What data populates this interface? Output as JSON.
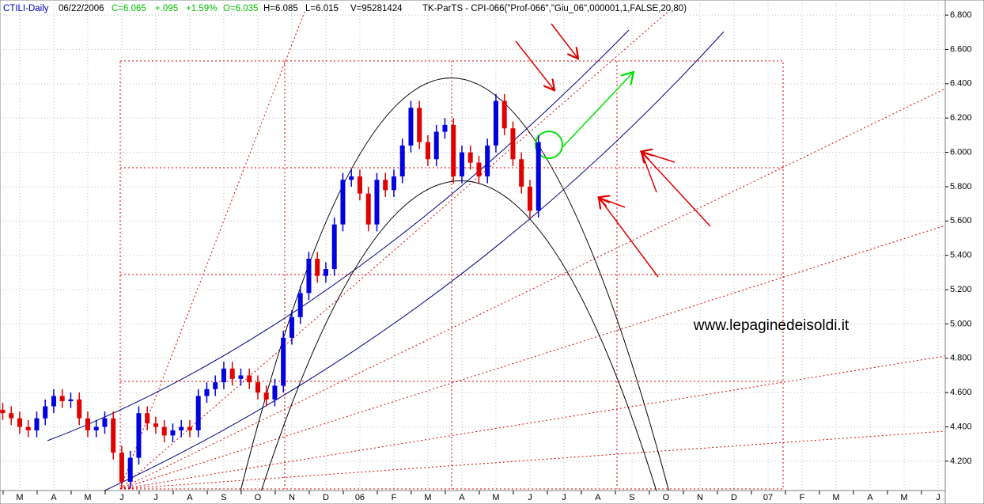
{
  "chart_data": {
    "type": "candlestick",
    "header": [
      {
        "text": "CTILI-Daily",
        "color": "#0000c0"
      },
      {
        "text": "06/22/2006",
        "color": "#000000"
      },
      {
        "text": "C=6.065",
        "color": "#00c000"
      },
      {
        "text": "+.095",
        "color": "#00c000"
      },
      {
        "text": "+1.59%",
        "color": "#00c000"
      },
      {
        "text": "O=6.035",
        "color": "#00c000"
      },
      {
        "text": "H=6.085",
        "color": "#000000"
      },
      {
        "text": "L=6.015",
        "color": "#000000"
      },
      {
        "text": "V=95281424",
        "color": "#000000"
      },
      {
        "text": "TK-ParTS - CPI-066(\"Prof-066\",\"Giu_06\",000001,1,FALSE,20,80)",
        "color": "#000000"
      }
    ],
    "annotation": "www.lepaginedeisoldi.it",
    "up_color": "#0000e0",
    "down_color": "#e00000",
    "grid": true,
    "xlim": [
      -0.58,
      27.21
    ],
    "ylim": [
      4.029,
      6.888
    ],
    "xticks": [
      {
        "value": 0,
        "label": "M"
      },
      {
        "value": 1,
        "label": "A"
      },
      {
        "value": 2,
        "label": "M"
      },
      {
        "value": 3,
        "label": "J"
      },
      {
        "value": 4,
        "label": "J"
      },
      {
        "value": 5,
        "label": "A"
      },
      {
        "value": 6,
        "label": "S"
      },
      {
        "value": 7,
        "label": "O"
      },
      {
        "value": 8,
        "label": "N"
      },
      {
        "value": 9,
        "label": "D"
      },
      {
        "value": 10,
        "label": "06"
      },
      {
        "value": 11,
        "label": "F"
      },
      {
        "value": 12,
        "label": "M"
      },
      {
        "value": 13,
        "label": "A"
      },
      {
        "value": 14,
        "label": "M"
      },
      {
        "value": 15,
        "label": "J"
      },
      {
        "value": 16,
        "label": "J"
      },
      {
        "value": 17,
        "label": "A"
      },
      {
        "value": 18,
        "label": "S"
      },
      {
        "value": 19,
        "label": "O"
      },
      {
        "value": 20,
        "label": "N"
      },
      {
        "value": 21,
        "label": "D"
      },
      {
        "value": 22,
        "label": "07"
      },
      {
        "value": 23,
        "label": "F"
      },
      {
        "value": 24,
        "label": "M"
      },
      {
        "value": 25,
        "label": "A"
      },
      {
        "value": 26,
        "label": "M"
      },
      {
        "value": 27,
        "label": "J"
      }
    ],
    "yticks": [
      {
        "value": 4.2,
        "label": "4.200"
      },
      {
        "value": 4.4,
        "label": "4.400"
      },
      {
        "value": 4.6,
        "label": "4.600"
      },
      {
        "value": 4.8,
        "label": "4.800"
      },
      {
        "value": 5.0,
        "label": "5.000"
      },
      {
        "value": 5.2,
        "label": "5.200"
      },
      {
        "value": 5.4,
        "label": "5.400"
      },
      {
        "value": 5.6,
        "label": "5.600"
      },
      {
        "value": 5.8,
        "label": "5.800"
      },
      {
        "value": 6.0,
        "label": "6.000"
      },
      {
        "value": 6.2,
        "label": "6.200"
      },
      {
        "value": 6.4,
        "label": "6.400"
      },
      {
        "value": 6.6,
        "label": "6.600"
      },
      {
        "value": 6.8,
        "label": "6.800"
      }
    ],
    "x": [
      -0.5,
      -0.25,
      0,
      0.25,
      0.5,
      0.75,
      1,
      1.25,
      1.5,
      1.75,
      2,
      2.25,
      2.5,
      2.75,
      3,
      3.25,
      3.5,
      3.75,
      4,
      4.25,
      4.5,
      4.75,
      5,
      5.25,
      5.5,
      5.75,
      6,
      6.25,
      6.5,
      6.75,
      7,
      7.25,
      7.5,
      7.75,
      8,
      8.25,
      8.5,
      8.75,
      9,
      9.25,
      9.5,
      9.75,
      10,
      10.25,
      10.5,
      10.75,
      11,
      11.25,
      11.5,
      11.75,
      12,
      12.25,
      12.5,
      12.75,
      13,
      13.25,
      13.5,
      13.75,
      14,
      14.25,
      14.5,
      14.75,
      15,
      15.25
    ],
    "open": [
      4.5,
      4.48,
      4.45,
      4.4,
      4.38,
      4.45,
      4.52,
      4.58,
      4.55,
      4.56,
      4.45,
      4.38,
      4.4,
      4.45,
      4.25,
      4.08,
      4.22,
      4.48,
      4.42,
      4.4,
      4.35,
      4.38,
      4.4,
      4.38,
      4.58,
      4.62,
      4.66,
      4.74,
      4.68,
      4.7,
      4.66,
      4.6,
      4.56,
      4.64,
      4.92,
      5.04,
      5.18,
      5.38,
      5.28,
      5.32,
      5.58,
      5.84,
      5.86,
      5.76,
      5.58,
      5.84,
      5.78,
      5.86,
      6.04,
      6.26,
      6.06,
      5.96,
      6.12,
      6.16,
      5.86,
      6.0,
      5.94,
      5.86,
      6.04,
      6.3,
      6.14,
      5.96,
      5.8,
      5.66
    ],
    "close": [
      4.48,
      4.45,
      4.4,
      4.38,
      4.45,
      4.52,
      4.58,
      4.55,
      4.56,
      4.45,
      4.38,
      4.4,
      4.45,
      4.25,
      4.08,
      4.22,
      4.48,
      4.42,
      4.4,
      4.35,
      4.38,
      4.4,
      4.38,
      4.58,
      4.62,
      4.66,
      4.74,
      4.68,
      4.7,
      4.66,
      4.6,
      4.56,
      4.64,
      4.92,
      5.04,
      5.18,
      5.38,
      5.28,
      5.32,
      5.58,
      5.84,
      5.86,
      5.76,
      5.58,
      5.84,
      5.78,
      5.86,
      6.04,
      6.26,
      6.06,
      5.96,
      6.12,
      6.16,
      5.86,
      6.0,
      5.94,
      5.86,
      6.04,
      6.3,
      6.14,
      5.96,
      5.8,
      5.66,
      6.06
    ],
    "high": [
      4.54,
      4.52,
      4.49,
      4.44,
      4.49,
      4.56,
      4.62,
      4.62,
      4.6,
      4.6,
      4.49,
      4.44,
      4.49,
      4.49,
      4.29,
      4.26,
      4.52,
      4.52,
      4.46,
      4.44,
      4.42,
      4.44,
      4.44,
      4.62,
      4.66,
      4.7,
      4.78,
      4.78,
      4.74,
      4.74,
      4.7,
      4.64,
      4.68,
      4.96,
      5.08,
      5.22,
      5.42,
      5.42,
      5.36,
      5.62,
      5.88,
      5.9,
      5.9,
      5.8,
      5.88,
      5.88,
      5.9,
      6.08,
      6.3,
      6.3,
      6.1,
      6.16,
      6.2,
      6.2,
      6.04,
      6.04,
      5.98,
      6.08,
      6.34,
      6.34,
      6.18,
      6.0,
      5.84,
      6.1
    ],
    "low": [
      4.44,
      4.41,
      4.36,
      4.34,
      4.34,
      4.41,
      4.48,
      4.51,
      4.51,
      4.41,
      4.34,
      4.34,
      4.36,
      4.21,
      4.04,
      4.04,
      4.18,
      4.38,
      4.36,
      4.31,
      4.31,
      4.34,
      4.34,
      4.34,
      4.54,
      4.58,
      4.62,
      4.64,
      4.64,
      4.62,
      4.56,
      4.52,
      4.52,
      4.6,
      4.88,
      5.0,
      5.14,
      5.24,
      5.24,
      5.28,
      5.54,
      5.8,
      5.72,
      5.54,
      5.54,
      5.74,
      5.74,
      5.82,
      6.0,
      6.02,
      5.92,
      5.92,
      6.08,
      5.82,
      5.82,
      5.9,
      5.82,
      5.82,
      6.0,
      6.1,
      5.92,
      5.76,
      5.62,
      5.62
    ]
  }
}
